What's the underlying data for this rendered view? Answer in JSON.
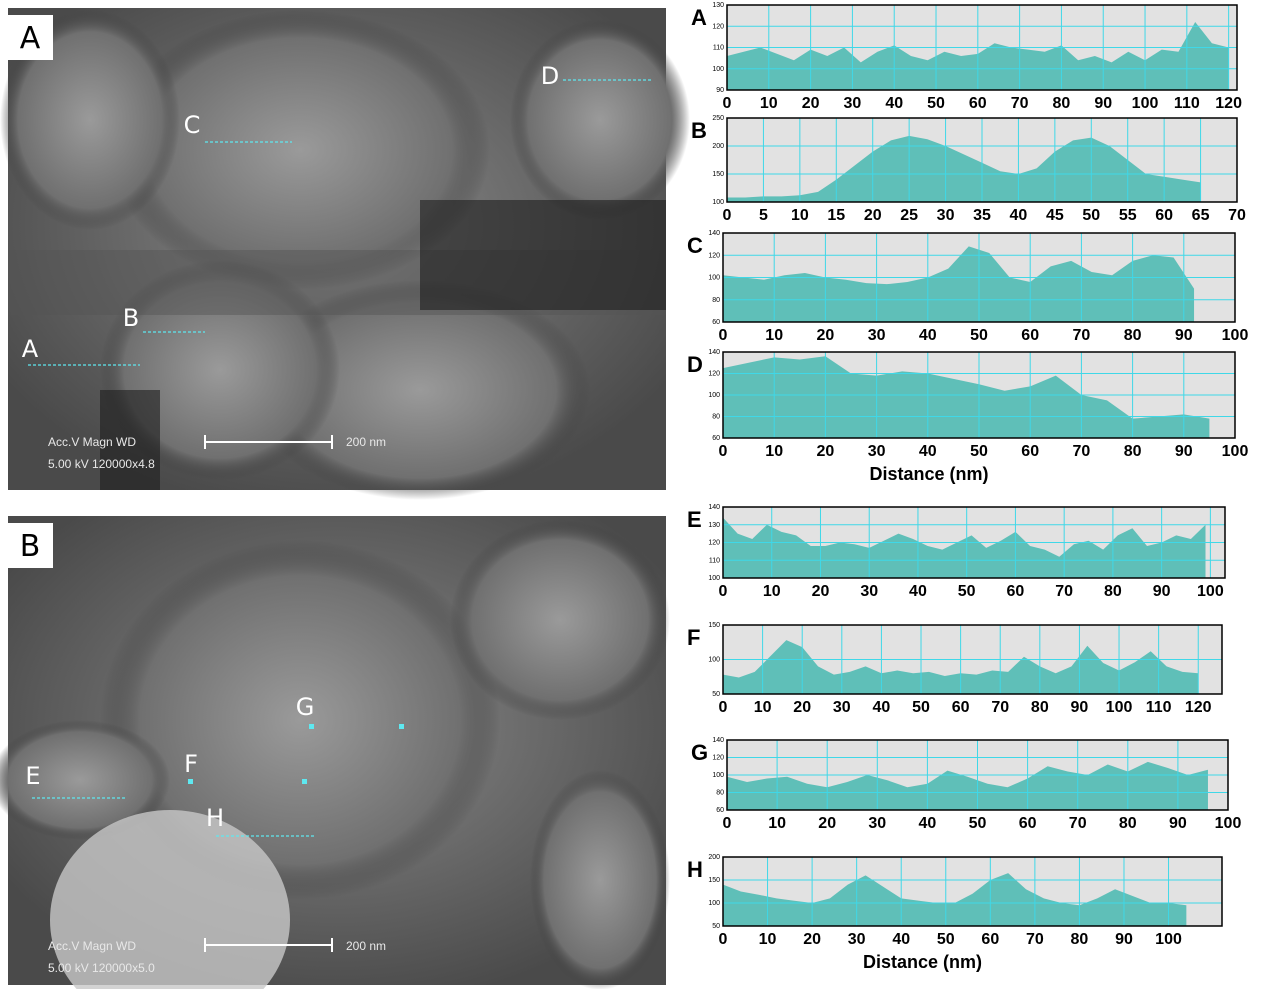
{
  "images": [
    {
      "label": "A",
      "acc": "Acc.V   Magn    WD",
      "params": "5.00 kV 120000x4.8",
      "scale": "200 nm",
      "markers": [
        "A",
        "B",
        "C",
        "D"
      ]
    },
    {
      "label": "B",
      "acc": "Acc.V   Magn    WD",
      "params": "5.00 kV 120000x5.0",
      "scale": "200 nm",
      "markers": [
        "E",
        "F",
        "G",
        "H"
      ]
    }
  ],
  "chart_data": [
    {
      "type": "area",
      "label": "A",
      "color": "#5fbfb8",
      "grid": true,
      "xlim": [
        0,
        122
      ],
      "ylim": [
        90,
        130
      ],
      "xticks": [
        0,
        10,
        20,
        30,
        40,
        50,
        60,
        70,
        80,
        90,
        100,
        110,
        120
      ],
      "yticks": [
        90,
        100,
        110,
        120,
        130
      ],
      "x": [
        0,
        4,
        8,
        12,
        16,
        20,
        24,
        28,
        32,
        36,
        40,
        44,
        48,
        52,
        56,
        60,
        64,
        68,
        72,
        76,
        80,
        84,
        88,
        92,
        96,
        100,
        104,
        108,
        112,
        116,
        120
      ],
      "values": [
        106,
        108,
        110,
        107,
        104,
        109,
        106,
        110,
        103,
        108,
        111,
        106,
        104,
        108,
        106,
        107,
        112,
        110,
        109,
        108,
        111,
        104,
        106,
        103,
        108,
        104,
        109,
        108,
        122,
        112,
        110
      ]
    },
    {
      "type": "area",
      "label": "B",
      "color": "#5fbfb8",
      "grid": true,
      "xlim": [
        0,
        70
      ],
      "ylim": [
        100,
        250
      ],
      "xticks": [
        0,
        5,
        10,
        15,
        20,
        25,
        30,
        35,
        40,
        45,
        50,
        55,
        60,
        65,
        70
      ],
      "yticks": [
        100,
        150,
        200,
        250
      ],
      "x": [
        0,
        2.5,
        5,
        7.5,
        10,
        12.5,
        15,
        17.5,
        20,
        22.5,
        25,
        27.5,
        30,
        32.5,
        35,
        37.5,
        40,
        42.5,
        45,
        47.5,
        50,
        52.5,
        55,
        57.5,
        60,
        62.5,
        65
      ],
      "values": [
        108,
        108,
        110,
        110,
        112,
        118,
        140,
        165,
        190,
        210,
        218,
        212,
        200,
        185,
        170,
        155,
        150,
        160,
        190,
        210,
        215,
        200,
        175,
        150,
        145,
        140,
        135
      ]
    },
    {
      "type": "area",
      "label": "C",
      "color": "#5fbfb8",
      "grid": true,
      "xlim": [
        0,
        100
      ],
      "ylim": [
        60,
        140
      ],
      "xticks": [
        0,
        10,
        20,
        30,
        40,
        50,
        60,
        70,
        80,
        90,
        100
      ],
      "yticks": [
        60,
        80,
        100,
        120,
        140
      ],
      "x": [
        0,
        4,
        8,
        12,
        16,
        20,
        24,
        28,
        32,
        36,
        40,
        44,
        48,
        52,
        56,
        60,
        64,
        68,
        72,
        76,
        80,
        84,
        88,
        92
      ],
      "values": [
        102,
        100,
        98,
        102,
        104,
        100,
        98,
        95,
        94,
        96,
        100,
        108,
        128,
        122,
        100,
        96,
        110,
        115,
        105,
        102,
        115,
        120,
        118,
        90
      ]
    },
    {
      "type": "area",
      "label": "D",
      "color": "#5fbfb8",
      "grid": true,
      "xlim": [
        0,
        100
      ],
      "ylim": [
        60,
        140
      ],
      "xlabel": "Distance (nm)",
      "xticks": [
        0,
        10,
        20,
        30,
        40,
        50,
        60,
        70,
        80,
        90,
        100
      ],
      "yticks": [
        60,
        80,
        100,
        120,
        140
      ],
      "x": [
        0,
        5,
        10,
        15,
        20,
        25,
        30,
        35,
        40,
        45,
        50,
        55,
        60,
        65,
        70,
        75,
        80,
        85,
        90,
        95
      ],
      "values": [
        125,
        130,
        135,
        133,
        136,
        120,
        118,
        122,
        120,
        115,
        110,
        104,
        108,
        118,
        100,
        95,
        78,
        80,
        82,
        78
      ]
    },
    {
      "type": "area",
      "label": "E",
      "color": "#5fbfb8",
      "grid": true,
      "xlim": [
        0,
        103
      ],
      "ylim": [
        100,
        140
      ],
      "xticks": [
        0,
        10,
        20,
        30,
        40,
        50,
        60,
        70,
        80,
        90,
        100
      ],
      "yticks": [
        100,
        110,
        120,
        130,
        140
      ],
      "x": [
        0,
        3,
        6,
        9,
        12,
        15,
        18,
        21,
        24,
        27,
        30,
        33,
        36,
        39,
        42,
        45,
        48,
        51,
        54,
        57,
        60,
        63,
        66,
        69,
        72,
        75,
        78,
        81,
        84,
        87,
        90,
        93,
        96,
        99
      ],
      "values": [
        134,
        125,
        122,
        130,
        126,
        124,
        118,
        118,
        120,
        119,
        117,
        121,
        125,
        122,
        118,
        116,
        120,
        124,
        117,
        121,
        126,
        118,
        116,
        112,
        119,
        121,
        116,
        124,
        128,
        118,
        120,
        124,
        122,
        130
      ]
    },
    {
      "type": "area",
      "label": "F",
      "color": "#5fbfb8",
      "grid": true,
      "xlim": [
        0,
        126
      ],
      "ylim": [
        50,
        150
      ],
      "xticks": [
        0,
        10,
        20,
        30,
        40,
        50,
        60,
        70,
        80,
        90,
        100,
        110,
        120
      ],
      "yticks": [
        50,
        100,
        150
      ],
      "x": [
        0,
        4,
        8,
        12,
        16,
        20,
        24,
        28,
        32,
        36,
        40,
        44,
        48,
        52,
        56,
        60,
        64,
        68,
        72,
        76,
        80,
        84,
        88,
        92,
        96,
        100,
        104,
        108,
        112,
        116,
        120
      ],
      "values": [
        78,
        74,
        82,
        105,
        128,
        118,
        90,
        78,
        82,
        90,
        80,
        84,
        80,
        82,
        76,
        80,
        78,
        84,
        82,
        104,
        90,
        80,
        90,
        120,
        95,
        84,
        96,
        112,
        90,
        82,
        80
      ]
    },
    {
      "type": "area",
      "label": "G",
      "color": "#5fbfb8",
      "grid": true,
      "xlim": [
        0,
        100
      ],
      "ylim": [
        60,
        140
      ],
      "xticks": [
        0,
        10,
        20,
        30,
        40,
        50,
        60,
        70,
        80,
        90,
        100
      ],
      "yticks": [
        60,
        80,
        100,
        120,
        140
      ],
      "x": [
        0,
        4,
        8,
        12,
        16,
        20,
        24,
        28,
        32,
        36,
        40,
        44,
        48,
        52,
        56,
        60,
        64,
        68,
        72,
        76,
        80,
        84,
        88,
        92,
        96
      ],
      "values": [
        98,
        92,
        96,
        98,
        90,
        86,
        92,
        100,
        94,
        86,
        90,
        105,
        98,
        90,
        86,
        96,
        110,
        104,
        100,
        112,
        104,
        115,
        108,
        100,
        106
      ]
    },
    {
      "type": "area",
      "label": "H",
      "color": "#5fbfb8",
      "grid": true,
      "xlim": [
        0,
        112
      ],
      "ylim": [
        50,
        200
      ],
      "xlabel": "Distance (nm)",
      "xticks": [
        0,
        10,
        20,
        30,
        40,
        50,
        60,
        70,
        80,
        90,
        100
      ],
      "yticks": [
        50,
        100,
        150,
        200
      ],
      "x": [
        0,
        4,
        8,
        12,
        16,
        20,
        24,
        28,
        32,
        36,
        40,
        44,
        48,
        52,
        56,
        60,
        64,
        68,
        72,
        76,
        80,
        84,
        88,
        92,
        96,
        100,
        104
      ],
      "values": [
        140,
        125,
        118,
        110,
        105,
        100,
        110,
        140,
        160,
        135,
        110,
        105,
        100,
        100,
        120,
        150,
        165,
        130,
        110,
        100,
        95,
        110,
        130,
        115,
        100,
        100,
        95
      ]
    }
  ]
}
